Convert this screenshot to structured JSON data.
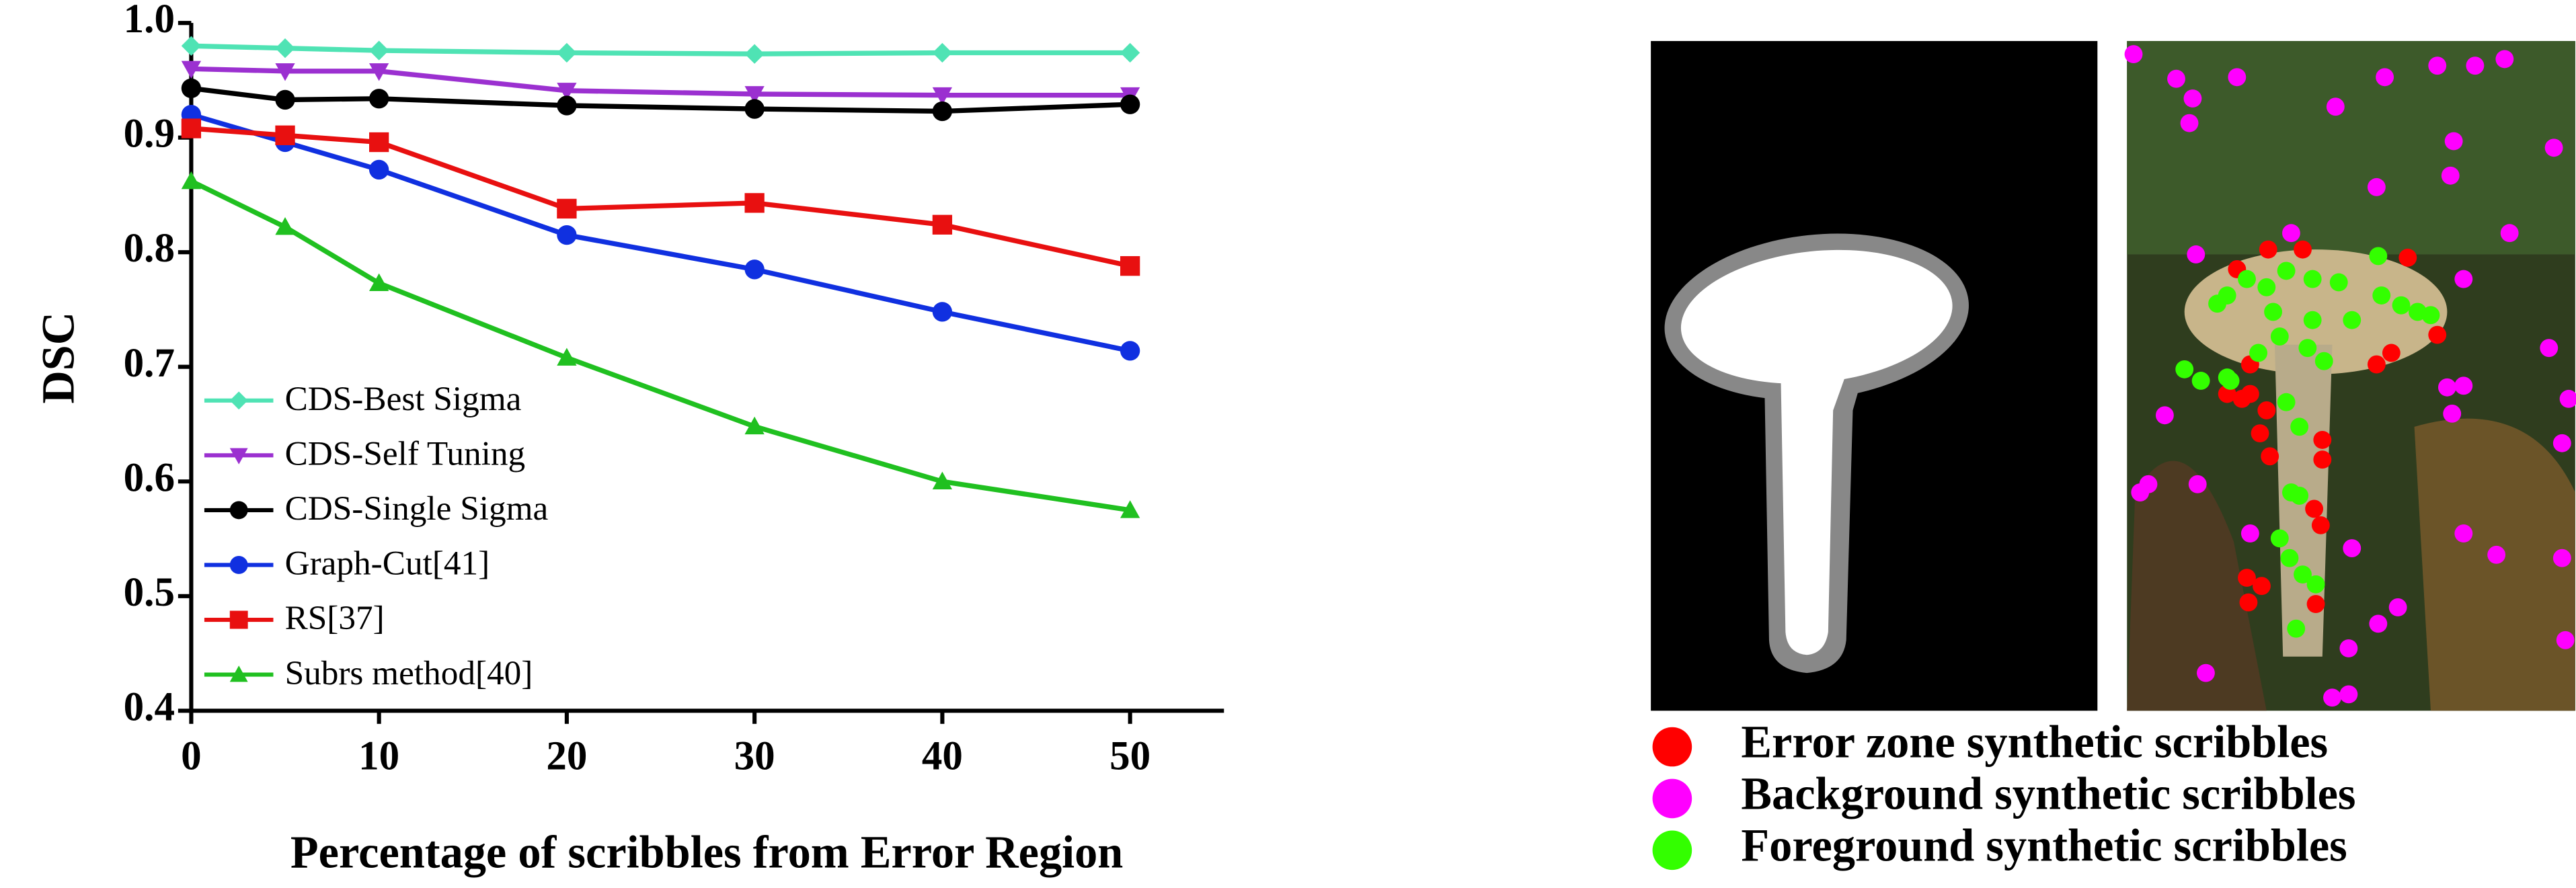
{
  "chart_data": {
    "type": "line",
    "x_label": "Percentage of scribbles from Error Region",
    "y_label": "DSC",
    "x": [
      0,
      5,
      10,
      20,
      30,
      40,
      50
    ],
    "series": [
      {
        "name": "CDS-Best Sigma",
        "color": "#4fe3b4",
        "marker": "diamond",
        "values": [
          0.98,
          0.978,
          0.976,
          0.974,
          0.973,
          0.974,
          0.974
        ]
      },
      {
        "name": "CDS-Self Tuning",
        "color": "#9b30d0",
        "marker": "triangle-down",
        "values": [
          0.96,
          0.958,
          0.958,
          0.941,
          0.938,
          0.937,
          0.937
        ]
      },
      {
        "name": "CDS-Single Sigma",
        "color": "#000000",
        "marker": "circle",
        "values": [
          0.943,
          0.933,
          0.934,
          0.928,
          0.925,
          0.923,
          0.929
        ]
      },
      {
        "name": "Graph-Cut[41]",
        "color": "#1030e0",
        "marker": "circle",
        "values": [
          0.92,
          0.896,
          0.872,
          0.815,
          0.785,
          0.748,
          0.714
        ]
      },
      {
        "name": "RS[37]",
        "color": "#e81010",
        "marker": "square",
        "values": [
          0.908,
          0.902,
          0.896,
          0.838,
          0.843,
          0.824,
          0.788
        ]
      },
      {
        "name": "Subrs method[40]",
        "color": "#20c020",
        "marker": "triangle-up",
        "values": [
          0.862,
          0.822,
          0.773,
          0.708,
          0.648,
          0.6,
          0.575
        ]
      }
    ],
    "xlim": [
      0,
      55
    ],
    "ylim": [
      0.4,
      1
    ],
    "xticks": [
      0,
      10,
      20,
      30,
      40,
      50
    ],
    "yticks": [
      0.4,
      0.5,
      0.6,
      0.7,
      0.8,
      0.9,
      {
        "value": 1,
        "label": "1.0"
      }
    ],
    "legend": "lower left"
  },
  "figure_legend": [
    {
      "label": "Error zone synthetic scribbles",
      "color": "#ff0000"
    },
    {
      "label": "Background synthetic scribbles",
      "color": "#ff00ff"
    },
    {
      "label": "Foreground synthetic scribbles",
      "color": "#33ff00"
    }
  ]
}
